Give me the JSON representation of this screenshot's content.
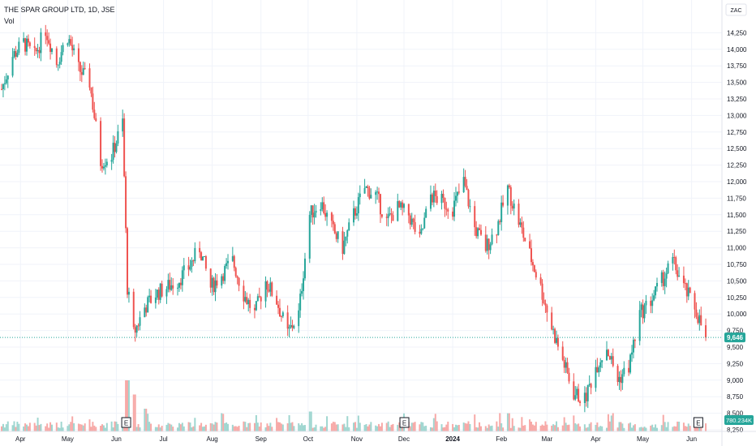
{
  "header": {
    "title": "THE SPAR GROUP LTD, 1D, JSE",
    "volume_label": "Vol"
  },
  "currency": "ZAC",
  "colors": {
    "up": "#26a69a",
    "down": "#ef5350",
    "up_vol": "#9fd6d0",
    "down_vol": "#f7a9a7",
    "last_price_bg": "#26a69a",
    "volume_badge_bg": "#26a69a",
    "grid": "#f0f3fa"
  },
  "last_price_label": "9,646",
  "last_volume_label": "780.234K",
  "event_markers": [
    {
      "label": "E",
      "date": "2023-06-07"
    },
    {
      "label": "E",
      "date": "2023-12-01"
    },
    {
      "label": "E",
      "date": "2024-06-05"
    }
  ],
  "chart_data": {
    "type": "candlestick",
    "title": "THE SPAR GROUP LTD, 1D, JSE",
    "ylim": [
      8250,
      14500
    ],
    "y_ticks": [
      "14,250",
      "14,000",
      "13,750",
      "13,500",
      "13,250",
      "13,000",
      "12,750",
      "12,500",
      "12,250",
      "12,000",
      "11,750",
      "11,500",
      "11,250",
      "11,000",
      "10,750",
      "10,500",
      "10,250",
      "10,000",
      "9,750",
      "9,500",
      "9,250",
      "9,000",
      "8,750",
      "8,500",
      "8,250"
    ],
    "x_ticks": [
      "Apr",
      "May",
      "Jun",
      "Jul",
      "Aug",
      "Sep",
      "Oct",
      "Nov",
      "Dec",
      "2024",
      "Feb",
      "Mar",
      "Apr",
      "May",
      "Jun"
    ],
    "close_path": [
      [
        "2023-03-20",
        13400
      ],
      [
        "2023-03-27",
        13900
      ],
      [
        "2023-04-03",
        14100
      ],
      [
        "2023-04-10",
        13900
      ],
      [
        "2023-04-17",
        14300
      ],
      [
        "2023-04-24",
        13800
      ],
      [
        "2023-05-01",
        14200
      ],
      [
        "2023-05-08",
        13700
      ],
      [
        "2023-05-15",
        13500
      ],
      [
        "2023-05-22",
        12300
      ],
      [
        "2023-05-29",
        12400
      ],
      [
        "2023-06-05",
        12900
      ],
      [
        "2023-06-08",
        10400
      ],
      [
        "2023-06-12",
        9700
      ],
      [
        "2023-06-19",
        10100
      ],
      [
        "2023-06-26",
        10300
      ],
      [
        "2023-07-03",
        10400
      ],
      [
        "2023-07-10",
        10500
      ],
      [
        "2023-07-17",
        10700
      ],
      [
        "2023-07-24",
        11000
      ],
      [
        "2023-07-31",
        10400
      ],
      [
        "2023-08-07",
        10600
      ],
      [
        "2023-08-14",
        10800
      ],
      [
        "2023-08-21",
        10300
      ],
      [
        "2023-08-28",
        10000
      ],
      [
        "2023-09-04",
        10500
      ],
      [
        "2023-09-11",
        10200
      ],
      [
        "2023-09-18",
        9700
      ],
      [
        "2023-09-25",
        10000
      ],
      [
        "2023-10-02",
        11500
      ],
      [
        "2023-10-09",
        11700
      ],
      [
        "2023-10-16",
        11300
      ],
      [
        "2023-10-23",
        11000
      ],
      [
        "2023-10-30",
        11500
      ],
      [
        "2023-11-06",
        11900
      ],
      [
        "2023-11-13",
        11800
      ],
      [
        "2023-11-20",
        11400
      ],
      [
        "2023-11-27",
        11600
      ],
      [
        "2023-12-04",
        11500
      ],
      [
        "2023-12-11",
        11100
      ],
      [
        "2023-12-18",
        11800
      ],
      [
        "2023-12-25",
        11700
      ],
      [
        "2024-01-01",
        11600
      ],
      [
        "2024-01-08",
        12000
      ],
      [
        "2024-01-15",
        11300
      ],
      [
        "2024-01-22",
        11000
      ],
      [
        "2024-01-29",
        11300
      ],
      [
        "2024-02-05",
        11900
      ],
      [
        "2024-02-12",
        11400
      ],
      [
        "2024-02-19",
        10900
      ],
      [
        "2024-02-26",
        10400
      ],
      [
        "2024-03-04",
        9800
      ],
      [
        "2024-03-11",
        9300
      ],
      [
        "2024-03-18",
        8800
      ],
      [
        "2024-03-25",
        8700
      ],
      [
        "2024-04-01",
        9200
      ],
      [
        "2024-04-08",
        9500
      ],
      [
        "2024-04-15",
        9000
      ],
      [
        "2024-04-22",
        9200
      ],
      [
        "2024-04-29",
        10000
      ],
      [
        "2024-05-06",
        10200
      ],
      [
        "2024-05-13",
        10500
      ],
      [
        "2024-05-20",
        10800
      ],
      [
        "2024-05-27",
        10400
      ],
      [
        "2024-06-03",
        10100
      ],
      [
        "2024-06-10",
        9646
      ]
    ],
    "volume_spikes": [
      [
        "2023-06-08",
        9.0
      ],
      [
        "2023-06-12",
        6.5
      ],
      [
        "2023-06-19",
        4.0
      ],
      [
        "2023-10-02",
        3.5
      ],
      [
        "2024-02-05",
        3.2
      ]
    ]
  }
}
